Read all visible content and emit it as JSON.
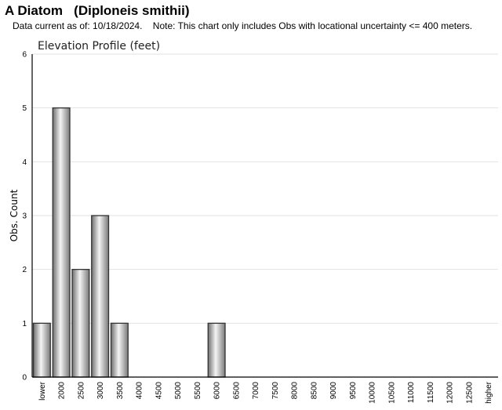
{
  "header": {
    "title": "A Diatom   (Diploneis smithii)",
    "note": "Data current as of: 10/18/2024.    Note: This chart only includes Obs with locational uncertainty <= 400 meters."
  },
  "chart_data": {
    "type": "bar",
    "title": "Elevation Profile (feet)",
    "xlabel": "",
    "ylabel": "Obs. Count",
    "ylim": [
      0,
      6
    ],
    "yticks": [
      0,
      1,
      2,
      3,
      4,
      5,
      6
    ],
    "grid": true,
    "legend": "none",
    "bar_color": "#b8b8b8",
    "categories": [
      "lower",
      "2000",
      "2500",
      "3000",
      "3500",
      "4000",
      "4500",
      "5000",
      "5500",
      "6000",
      "6500",
      "7000",
      "7500",
      "8000",
      "8500",
      "9000",
      "9500",
      "10000",
      "10500",
      "11000",
      "11500",
      "12000",
      "12500",
      "higher"
    ],
    "values": [
      1,
      5,
      2,
      3,
      1,
      0,
      0,
      0,
      0,
      1,
      0,
      0,
      0,
      0,
      0,
      0,
      0,
      0,
      0,
      0,
      0,
      0,
      0,
      0
    ]
  }
}
